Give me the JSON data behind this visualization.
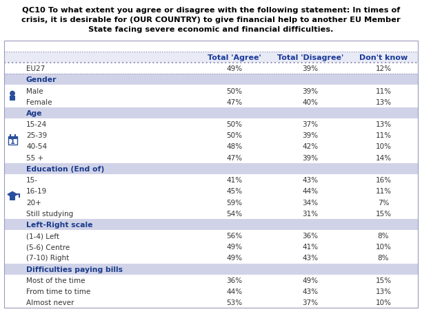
{
  "title_line1": "QC10 To what extent you agree or disagree with the following statement: In times of",
  "title_line2": "crisis, it is desirable for (OUR COUNTRY) to give financial help to another EU Member",
  "title_line3": "State facing severe economic and financial difficulties.",
  "col_headers": [
    "Total 'Agree'",
    "Total 'Disagree'",
    "Don't know"
  ],
  "rows": [
    {
      "label": "EU27",
      "is_header": false,
      "is_eu27": true,
      "agree": "49%",
      "disagree": "39%",
      "dontknow": "12%",
      "icon": ""
    },
    {
      "label": "Gender",
      "is_header": true,
      "agree": "",
      "disagree": "",
      "dontknow": "",
      "icon": ""
    },
    {
      "label": "Male",
      "is_header": false,
      "is_eu27": false,
      "agree": "50%",
      "disagree": "39%",
      "dontknow": "11%",
      "icon": "gender"
    },
    {
      "label": "Female",
      "is_header": false,
      "is_eu27": false,
      "agree": "47%",
      "disagree": "40%",
      "dontknow": "13%",
      "icon": ""
    },
    {
      "label": "Age",
      "is_header": true,
      "agree": "",
      "disagree": "",
      "dontknow": "",
      "icon": ""
    },
    {
      "label": "15-24",
      "is_header": false,
      "is_eu27": false,
      "agree": "50%",
      "disagree": "37%",
      "dontknow": "13%",
      "icon": "age"
    },
    {
      "label": "25-39",
      "is_header": false,
      "is_eu27": false,
      "agree": "50%",
      "disagree": "39%",
      "dontknow": "11%",
      "icon": ""
    },
    {
      "label": "40-54",
      "is_header": false,
      "is_eu27": false,
      "agree": "48%",
      "disagree": "42%",
      "dontknow": "10%",
      "icon": ""
    },
    {
      "label": "55 +",
      "is_header": false,
      "is_eu27": false,
      "agree": "47%",
      "disagree": "39%",
      "dontknow": "14%",
      "icon": ""
    },
    {
      "label": "Education (End of)",
      "is_header": true,
      "agree": "",
      "disagree": "",
      "dontknow": "",
      "icon": ""
    },
    {
      "label": "15-",
      "is_header": false,
      "is_eu27": false,
      "agree": "41%",
      "disagree": "43%",
      "dontknow": "16%",
      "icon": "edu"
    },
    {
      "label": "16-19",
      "is_header": false,
      "is_eu27": false,
      "agree": "45%",
      "disagree": "44%",
      "dontknow": "11%",
      "icon": ""
    },
    {
      "label": "20+",
      "is_header": false,
      "is_eu27": false,
      "agree": "59%",
      "disagree": "34%",
      "dontknow": "7%",
      "icon": ""
    },
    {
      "label": "Still studying",
      "is_header": false,
      "is_eu27": false,
      "agree": "54%",
      "disagree": "31%",
      "dontknow": "15%",
      "icon": ""
    },
    {
      "label": "Left-Right scale",
      "is_header": true,
      "agree": "",
      "disagree": "",
      "dontknow": "",
      "icon": ""
    },
    {
      "label": "(1-4) Left",
      "is_header": false,
      "is_eu27": false,
      "agree": "56%",
      "disagree": "36%",
      "dontknow": "8%",
      "icon": ""
    },
    {
      "label": "(5-6) Centre",
      "is_header": false,
      "is_eu27": false,
      "agree": "49%",
      "disagree": "41%",
      "dontknow": "10%",
      "icon": ""
    },
    {
      "label": "(7-10) Right",
      "is_header": false,
      "is_eu27": false,
      "agree": "49%",
      "disagree": "43%",
      "dontknow": "8%",
      "icon": ""
    },
    {
      "label": "Difficulties paying bills",
      "is_header": true,
      "agree": "",
      "disagree": "",
      "dontknow": "",
      "icon": ""
    },
    {
      "label": "Most of the time",
      "is_header": false,
      "is_eu27": false,
      "agree": "36%",
      "disagree": "49%",
      "dontknow": "15%",
      "icon": ""
    },
    {
      "label": "From time to time",
      "is_header": false,
      "is_eu27": false,
      "agree": "44%",
      "disagree": "43%",
      "dontknow": "13%",
      "icon": ""
    },
    {
      "label": "Almost never",
      "is_header": false,
      "is_eu27": false,
      "agree": "53%",
      "disagree": "37%",
      "dontknow": "10%",
      "icon": ""
    }
  ],
  "section_header_bg": "#d0d3e8",
  "header_text_color": "#1a3a8a",
  "col_header_color": "#1a3a9a",
  "text_color": "#333333",
  "border_color": "#9999bb",
  "dotted_color": "#9999bb",
  "title_color": "#000000",
  "icon_color": "#2a4f9e",
  "bg_color": "#ffffff"
}
